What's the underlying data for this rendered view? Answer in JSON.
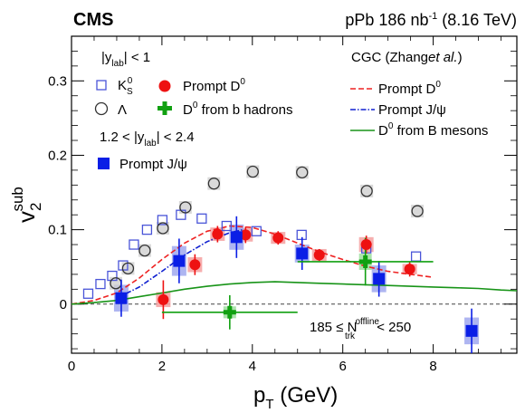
{
  "chart_data": {
    "type": "scatter",
    "experiment": "CMS",
    "luminosity": "pPb 186 nb",
    "luminosity_exp": "-1",
    "energy": "(8.16 TeV)",
    "xlabel": "p",
    "xlabel_sub": "T",
    "xlabel_unit": "(GeV)",
    "ylabel": "v",
    "ylabel_sub": "2",
    "ylabel_sup": "sub",
    "xlim": [
      0,
      9.85
    ],
    "ylim": [
      -0.066,
      0.36
    ],
    "xticks": [
      0,
      2,
      4,
      6,
      8
    ],
    "yticks": [
      0,
      0.1,
      0.2,
      0.3
    ],
    "xticklabels": [
      "0",
      "2",
      "4",
      "6",
      "8"
    ],
    "yticklabels": [
      "0",
      "0.1",
      "0.2",
      "0.3"
    ],
    "legend_left": {
      "group1": "|y",
      "group1_sub": "lab",
      "group1_tail": "| < 1",
      "ks0": "K",
      "ks0_sub": "S",
      "ks0_sup": "0",
      "lambda": "Λ",
      "promptD0": "Prompt D",
      "promptD0_sup": "0",
      "bD0": "D",
      "bD0_sup": "0",
      "bD0_tail": " from b hadrons",
      "group2a": "1.2 < |y",
      "group2_sub": "lab",
      "group2b": "| < 2.4",
      "jpsi": "Prompt J/ψ"
    },
    "legend_right": {
      "title": "CGC (Zhang",
      "title_italic": "et al.",
      "title_end": ")",
      "d0": "Prompt D",
      "d0_sup": "0",
      "jpsi": "Prompt J/ψ",
      "bmes": "D",
      "bmes_sup": "0",
      "bmes_tail": " from B mesons"
    },
    "multiplicity": {
      "pre": "185 ≤ N",
      "sup": "offline",
      "sub": "trk",
      "post": " < 250"
    },
    "colors": {
      "ks0": "#4a55d8",
      "lambda": "#333333",
      "promptD0": "#ee1111",
      "bD0": "#11a011",
      "jpsi": "#0a1ee6",
      "jpsi_theory": "#1020d0",
      "d0_theory": "#ee2222",
      "b_theory": "#189418",
      "sys_red": "#f4a0a0",
      "sys_blue": "#a0a8ee",
      "sys_green": "#9ede9e"
    },
    "series": [
      {
        "name": "K",
        "marker": "open-square",
        "x": [
          0.37,
          0.64,
          0.9,
          1.14,
          1.38,
          1.67,
          2.01,
          2.42,
          2.88,
          3.43,
          4.09,
          5.09,
          6.52,
          7.62
        ],
        "y": [
          0.014,
          0.027,
          0.038,
          0.052,
          0.08,
          0.1,
          0.113,
          0.12,
          0.115,
          0.105,
          0.098,
          0.093,
          0.075,
          0.064
        ]
      },
      {
        "name": "Λ",
        "marker": "open-circle",
        "x": [
          0.98,
          1.25,
          1.62,
          2.02,
          2.52,
          3.15,
          4.01,
          5.1,
          6.53,
          7.65
        ],
        "y": [
          0.028,
          0.048,
          0.072,
          0.102,
          0.13,
          0.162,
          0.178,
          0.177,
          0.152,
          0.125
        ],
        "yerr": [
          0.003,
          0.003,
          0.004,
          0.005,
          0.006,
          0.007,
          0.008,
          0.008,
          0.008,
          0.008
        ]
      },
      {
        "name": "Prompt D",
        "marker": "filled-circle",
        "x": [
          2.03,
          2.73,
          3.23,
          3.85,
          4.57,
          5.48,
          6.52,
          7.48
        ],
        "y": [
          0.006,
          0.053,
          0.094,
          0.093,
          0.089,
          0.066,
          0.08,
          0.047
        ],
        "yerr": [
          0.026,
          0.014,
          0.011,
          0.011,
          0.009,
          0.008,
          0.012,
          0.01
        ],
        "sys": [
          0.01,
          0.01,
          0.009,
          0.009,
          0.008,
          0.008,
          0.01,
          0.007
        ]
      },
      {
        "name": "D",
        "marker": "plus",
        "x": [
          3.5,
          6.5
        ],
        "y": [
          -0.011,
          0.057
        ],
        "xlo": [
          2.0,
          5.0
        ],
        "xhi": [
          5.0,
          8.0
        ],
        "yerr": [
          0.023,
          0.032
        ],
        "sys": [
          0.008,
          0.011
        ]
      },
      {
        "name": "Prompt J/ψ",
        "marker": "filled-square",
        "x": [
          1.1,
          2.38,
          3.65,
          5.1,
          6.8,
          8.85
        ],
        "y": [
          0.008,
          0.058,
          0.09,
          0.068,
          0.034,
          -0.036
        ],
        "yerr": [
          0.025,
          0.03,
          0.028,
          0.022,
          0.024,
          0.03
        ],
        "sys": [
          0.018,
          0.02,
          0.017,
          0.012,
          0.018,
          0.018
        ]
      }
    ],
    "theory": [
      {
        "name": "Prompt D",
        "style": "dashed",
        "x": [
          0,
          0.5,
          1.0,
          1.5,
          2.0,
          2.5,
          3.0,
          3.5,
          4.0,
          4.5,
          5.0,
          5.5,
          6.0,
          6.5,
          7.0,
          7.5,
          8.0
        ],
        "y": [
          0.0,
          0.005,
          0.015,
          0.035,
          0.06,
          0.082,
          0.098,
          0.105,
          0.103,
          0.094,
          0.082,
          0.07,
          0.06,
          0.051,
          0.044,
          0.04,
          0.036
        ]
      },
      {
        "name": "Prompt J/ψ",
        "style": "dashdot",
        "x": [
          1.0,
          1.5,
          2.0,
          2.5,
          3.0,
          3.5,
          3.8
        ],
        "y": [
          0.008,
          0.023,
          0.044,
          0.066,
          0.084,
          0.096,
          0.1
        ]
      },
      {
        "name": "D",
        "style": "solid",
        "x": [
          0,
          0.5,
          1.0,
          1.5,
          2.0,
          2.5,
          3.0,
          3.5,
          4.0,
          4.5,
          5.0,
          5.5,
          6.0,
          6.5,
          7.0,
          7.5,
          8.0,
          8.5,
          9.0,
          9.5,
          9.85
        ],
        "y": [
          0.0,
          0.002,
          0.005,
          0.01,
          0.015,
          0.02,
          0.024,
          0.027,
          0.029,
          0.03,
          0.029,
          0.028,
          0.027,
          0.026,
          0.025,
          0.024,
          0.023,
          0.022,
          0.021,
          0.019,
          0.018
        ]
      }
    ]
  }
}
